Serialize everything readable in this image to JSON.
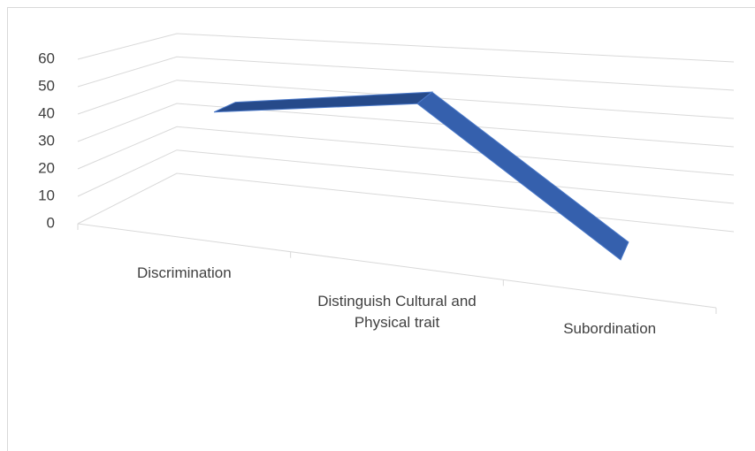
{
  "chart_data": {
    "type": "line3d",
    "categories": [
      "Discrimination",
      "Distinguish Cultural and Physical trait",
      "Subordination"
    ],
    "values": [
      40,
      50,
      3
    ],
    "color": "#3560ad",
    "ylim": [
      0,
      60
    ],
    "yticks": [
      0,
      10,
      20,
      30,
      40,
      50,
      60
    ],
    "grid": true
  }
}
